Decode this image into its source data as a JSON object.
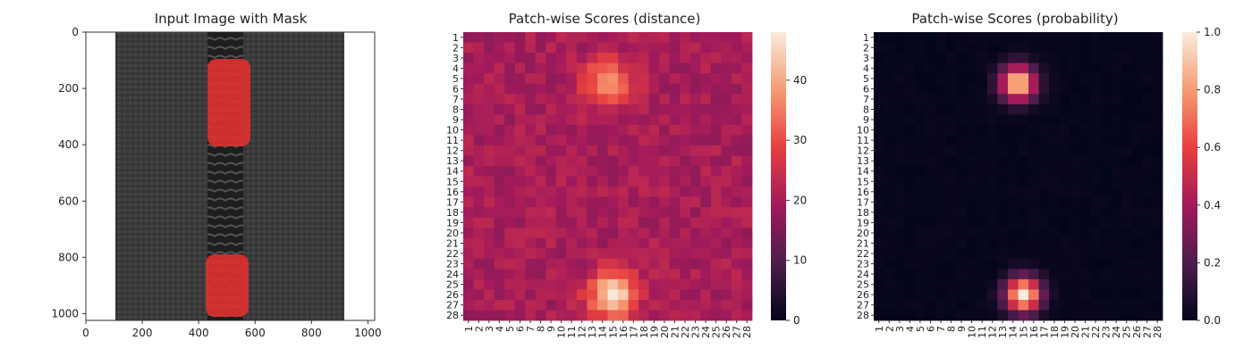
{
  "colors": {
    "mask": "#e03030",
    "fabric": "#3b3b3b",
    "zipper_teeth": "#202020",
    "rocket_colormap": [
      "#03051a",
      "#4c1d4b",
      "#a11a5b",
      "#e83f3f",
      "#f69c73",
      "#faebdd"
    ]
  },
  "chart_data": [
    {
      "type": "image",
      "title": "Input Image with Mask",
      "x_ticks": [
        "0",
        "200",
        "400",
        "600",
        "800",
        "1000"
      ],
      "y_ticks": [
        "0",
        "200",
        "400",
        "600",
        "800",
        "1000"
      ],
      "xlim": [
        0,
        1024
      ],
      "ylim": [
        1024,
        0
      ],
      "image_extent": [
        0,
        1024
      ],
      "fabric_extent_x": [
        105,
        905
      ],
      "zipper_teeth_x": [
        430,
        560
      ],
      "mask_regions": [
        {
          "x": [
            430,
            585
          ],
          "y": [
            95,
            305
          ]
        },
        {
          "x": [
            425,
            575
          ],
          "y": [
            790,
            975
          ]
        }
      ]
    },
    {
      "type": "heatmap",
      "title": "Patch-wise Scores (distance)",
      "rows": 28,
      "cols": 28,
      "x_tick_labels": [
        "1",
        "2",
        "3",
        "4",
        "5",
        "6",
        "7",
        "8",
        "9",
        "10",
        "11",
        "12",
        "13",
        "14",
        "15",
        "16",
        "17",
        "18",
        "19",
        "20",
        "21",
        "22",
        "23",
        "24",
        "25",
        "26",
        "27",
        "28"
      ],
      "y_tick_labels": [
        "1",
        "2",
        "3",
        "4",
        "5",
        "6",
        "7",
        "8",
        "9",
        "10",
        "11",
        "12",
        "13",
        "14",
        "15",
        "16",
        "17",
        "18",
        "19",
        "20",
        "21",
        "22",
        "23",
        "24",
        "25",
        "26",
        "27",
        "28"
      ],
      "colorbar": {
        "min": 0,
        "max": 48,
        "ticks": [
          "0",
          "10",
          "20",
          "30",
          "40"
        ]
      },
      "baseline": 20,
      "hotspots": [
        {
          "row": 5.5,
          "col": 14.5,
          "peak": 38,
          "sigma": 1.6
        },
        {
          "row": 26.0,
          "col": 15.0,
          "peak": 47,
          "sigma": 1.6
        }
      ]
    },
    {
      "type": "heatmap",
      "title": "Patch-wise Scores (probability)",
      "rows": 28,
      "cols": 28,
      "x_tick_labels": [
        "1",
        "2",
        "3",
        "4",
        "5",
        "6",
        "7",
        "8",
        "9",
        "10",
        "11",
        "12",
        "13",
        "14",
        "15",
        "16",
        "17",
        "18",
        "19",
        "20",
        "21",
        "22",
        "23",
        "24",
        "25",
        "26",
        "27",
        "28"
      ],
      "y_tick_labels": [
        "1",
        "2",
        "3",
        "4",
        "5",
        "6",
        "7",
        "8",
        "9",
        "10",
        "11",
        "12",
        "13",
        "14",
        "15",
        "16",
        "17",
        "18",
        "19",
        "20",
        "21",
        "22",
        "23",
        "24",
        "25",
        "26",
        "27",
        "28"
      ],
      "colorbar": {
        "min": 0,
        "max": 1,
        "ticks": [
          "0.0",
          "0.2",
          "0.4",
          "0.6",
          "0.8",
          "1.0"
        ]
      },
      "baseline": 0,
      "hotspots": [
        {
          "row": 5.5,
          "col": 14.5,
          "peak": 0.95,
          "sigma": 1.2
        },
        {
          "row": 26.0,
          "col": 15.0,
          "peak": 1.0,
          "sigma": 1.2
        }
      ]
    }
  ]
}
